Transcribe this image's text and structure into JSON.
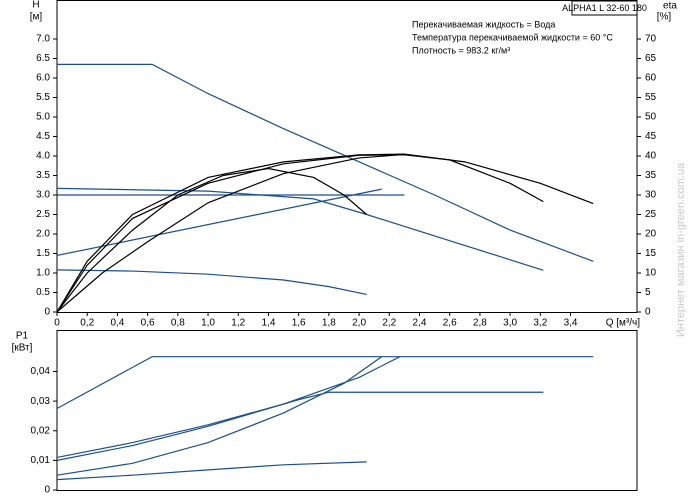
{
  "watermark": "Интернет магазин in-green.com.ua",
  "chart_data": [
    {
      "type": "line",
      "title": "ALPHA1 L 32-60 180",
      "annotations": [
        "Перекачиваемая жидкость = Вода",
        "Температура перекачиваемой жидкости = 60 °C",
        "Плотность = 983.2 кг/м³"
      ],
      "y_label": "H",
      "y_unit": "[м]",
      "y2_label": "eta",
      "y2_unit": "[%]",
      "x_label": "Q [м³/ч]",
      "xlim": [
        0,
        3.84
      ],
      "ylim": [
        0,
        8
      ],
      "y2lim": [
        0,
        80
      ],
      "grid": false,
      "xticks": [
        0,
        {
          "value": 0.2,
          "label": "0,2"
        },
        {
          "value": 0.4,
          "label": "0,4"
        },
        {
          "value": 0.6,
          "label": "0,6"
        },
        {
          "value": 0.8,
          "label": "0,8"
        },
        {
          "value": 1,
          "label": "1,0"
        },
        {
          "value": 1.2,
          "label": "1,2"
        },
        {
          "value": 1.4,
          "label": "1,4"
        },
        {
          "value": 1.6,
          "label": "1,6"
        },
        {
          "value": 1.8,
          "label": "1,8"
        },
        {
          "value": 2,
          "label": "2,0"
        },
        {
          "value": 2.2,
          "label": "2,2"
        },
        {
          "value": 2.4,
          "label": "2,4"
        },
        {
          "value": 2.6,
          "label": "2,6"
        },
        {
          "value": 2.8,
          "label": "2,8"
        },
        {
          "value": 3,
          "label": "3,0"
        },
        {
          "value": 3.2,
          "label": "3,2"
        },
        {
          "value": 3.4,
          "label": "3,4"
        }
      ],
      "yticks": [
        0,
        0.5,
        {
          "value": 1,
          "label": "1.0"
        },
        1.5,
        {
          "value": 2,
          "label": "2.0"
        },
        2.5,
        {
          "value": 3,
          "label": "3.0"
        },
        3.5,
        {
          "value": 4,
          "label": "4.0"
        },
        4.5,
        {
          "value": 5,
          "label": "5.0"
        },
        5.5,
        {
          "value": 6,
          "label": "6.0"
        },
        6.5,
        {
          "value": 7,
          "label": "7.0"
        }
      ],
      "y2ticks": [
        0,
        5,
        10,
        15,
        20,
        25,
        30,
        35,
        40,
        45,
        50,
        55,
        60,
        65,
        70
      ],
      "series": [
        {
          "color": "#1a4f8f",
          "x": [
            0,
            0.63,
            1.0,
            1.5,
            2.0,
            2.5,
            3.0,
            3.55
          ],
          "values": [
            6.35,
            6.35,
            5.6,
            4.7,
            3.85,
            3.0,
            2.1,
            1.3
          ]
        },
        {
          "color": "#1a4f8f",
          "x": [
            0,
            2.3
          ],
          "values": [
            3.0,
            3.0
          ]
        },
        {
          "color": "#1a4f8f",
          "x": [
            0,
            1.0,
            1.7,
            2.05,
            3.22
          ],
          "values": [
            3.17,
            3.1,
            2.9,
            2.5,
            1.07
          ]
        },
        {
          "color": "#1a4f8f",
          "x": [
            0,
            2.15
          ],
          "values": [
            1.45,
            3.15
          ]
        },
        {
          "color": "#1a4f8f",
          "x": [
            0,
            0.5,
            1.0,
            1.5,
            1.8,
            2.05
          ],
          "values": [
            1.08,
            1.05,
            0.97,
            0.82,
            0.65,
            0.45
          ]
        },
        {
          "color": "#000000",
          "axis": "y2",
          "x": [
            0,
            0.2,
            0.5,
            1.0,
            1.5,
            2.0,
            2.3,
            2.7,
            3.2,
            3.55
          ],
          "values": [
            0,
            13,
            25,
            34.5,
            38.5,
            40.3,
            40.5,
            38.5,
            33,
            27.8
          ]
        },
        {
          "color": "#000000",
          "axis": "y2",
          "x": [
            0,
            0.2,
            0.5,
            1.0,
            1.5,
            2.0,
            2.3,
            2.6,
            3.0,
            3.22
          ],
          "values": [
            0,
            12,
            24,
            33,
            38,
            40.2,
            40.3,
            39,
            33,
            28.3
          ]
        },
        {
          "color": "#000000",
          "axis": "y2",
          "x": [
            0,
            0.2,
            0.5,
            0.8,
            1.1,
            1.4,
            1.7,
            1.9,
            2.05
          ],
          "values": [
            0,
            10,
            21,
            30,
            35,
            36.8,
            34.5,
            30,
            25
          ]
        },
        {
          "color": "#000000",
          "axis": "y2",
          "x": [
            0,
            0.3,
            0.6,
            1.0,
            1.5,
            2.0,
            2.3
          ],
          "values": [
            0,
            10,
            18,
            28,
            35.5,
            39.5,
            40.4
          ]
        }
      ]
    },
    {
      "type": "line",
      "y_label": "P1",
      "y_unit": "[кВт]",
      "xlim": [
        0,
        3.84
      ],
      "ylim": [
        0,
        0.054
      ],
      "grid": false,
      "yticks": [
        0,
        {
          "value": 0.01,
          "label": "0,01"
        },
        {
          "value": 0.02,
          "label": "0,02"
        },
        {
          "value": 0.03,
          "label": "0,03"
        },
        {
          "value": 0.04,
          "label": "0,04"
        }
      ],
      "series": [
        {
          "color": "#1a4f8f",
          "x": [
            0,
            0.63,
            3.55
          ],
          "values": [
            0.0275,
            0.045,
            0.045
          ]
        },
        {
          "color": "#1a4f8f",
          "x": [
            0,
            0.5,
            1.0,
            1.5,
            2.0,
            2.27
          ],
          "values": [
            0.011,
            0.016,
            0.022,
            0.029,
            0.038,
            0.045
          ]
        },
        {
          "color": "#1a4f8f",
          "x": [
            0,
            0.5,
            1.0,
            1.5,
            1.9,
            2.15
          ],
          "values": [
            0.005,
            0.009,
            0.016,
            0.026,
            0.036,
            0.045
          ]
        },
        {
          "color": "#1a4f8f",
          "x": [
            0,
            0.5,
            1.0,
            1.6,
            1.8,
            3.22
          ],
          "values": [
            0.01,
            0.015,
            0.0215,
            0.0305,
            0.033,
            0.033
          ]
        },
        {
          "color": "#1a4f8f",
          "x": [
            0,
            0.5,
            1.0,
            1.5,
            2.05
          ],
          "values": [
            0.0035,
            0.005,
            0.0068,
            0.0085,
            0.0095
          ]
        }
      ]
    }
  ]
}
